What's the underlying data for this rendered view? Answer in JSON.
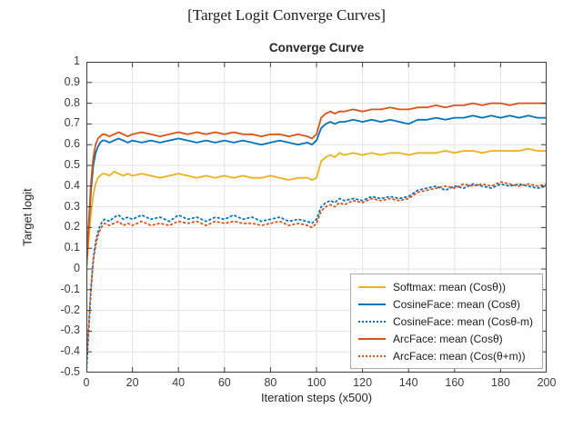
{
  "page": {
    "caption": "[Target Logit Converge Curves]"
  },
  "chart_data": {
    "type": "line",
    "title": "Converge Curve",
    "xlabel": "Iteration steps (x500)",
    "ylabel": "Target logit",
    "xlim": [
      0,
      200
    ],
    "ylim": [
      -0.5,
      1.0
    ],
    "grid": true,
    "legend_position": "bottom-right",
    "x_ticks": [
      0,
      20,
      40,
      60,
      80,
      100,
      120,
      140,
      160,
      180,
      200
    ],
    "y_ticks": [
      -0.5,
      -0.4,
      -0.3,
      -0.2,
      -0.1,
      0,
      0.1,
      0.2,
      0.3,
      0.4,
      0.5,
      0.6,
      0.7,
      0.8,
      0.9,
      1
    ],
    "y_tick_labels": [
      "-0.5",
      "-0.4",
      "-0.3",
      "-0.2",
      "-0.1",
      "0",
      "0.1",
      "0.2",
      "0.3",
      "0.4",
      "0.5",
      "0.6",
      "0.7",
      "0.8",
      "0.9",
      "1"
    ],
    "x": [
      0,
      1,
      2,
      3,
      4,
      5,
      6,
      7,
      8,
      10,
      12,
      14,
      16,
      18,
      20,
      24,
      28,
      32,
      36,
      40,
      44,
      48,
      52,
      56,
      60,
      64,
      68,
      72,
      76,
      80,
      84,
      88,
      92,
      96,
      98,
      100,
      102,
      104,
      106,
      108,
      110,
      112,
      116,
      120,
      124,
      128,
      132,
      136,
      140,
      144,
      148,
      152,
      156,
      160,
      164,
      168,
      172,
      176,
      180,
      184,
      188,
      192,
      196,
      200
    ],
    "series": [
      {
        "name": "Softmax: mean (Cosθ))",
        "color": "#EDB120",
        "style": "solid",
        "values": [
          0.0,
          0.14,
          0.27,
          0.36,
          0.41,
          0.44,
          0.45,
          0.46,
          0.46,
          0.45,
          0.47,
          0.46,
          0.45,
          0.46,
          0.45,
          0.46,
          0.45,
          0.44,
          0.45,
          0.46,
          0.45,
          0.44,
          0.45,
          0.44,
          0.45,
          0.44,
          0.45,
          0.44,
          0.44,
          0.45,
          0.44,
          0.43,
          0.44,
          0.44,
          0.43,
          0.44,
          0.52,
          0.54,
          0.55,
          0.54,
          0.56,
          0.55,
          0.56,
          0.55,
          0.56,
          0.55,
          0.56,
          0.56,
          0.55,
          0.56,
          0.56,
          0.56,
          0.57,
          0.56,
          0.57,
          0.57,
          0.56,
          0.57,
          0.57,
          0.57,
          0.57,
          0.58,
          0.57,
          0.57
        ]
      },
      {
        "name": "CosineFace: mean (Cosθ)",
        "color": "#0072BD",
        "style": "solid",
        "values": [
          0.0,
          0.2,
          0.38,
          0.5,
          0.56,
          0.59,
          0.61,
          0.62,
          0.62,
          0.61,
          0.62,
          0.63,
          0.62,
          0.61,
          0.62,
          0.61,
          0.62,
          0.61,
          0.62,
          0.63,
          0.62,
          0.61,
          0.62,
          0.61,
          0.62,
          0.61,
          0.62,
          0.61,
          0.6,
          0.61,
          0.62,
          0.61,
          0.6,
          0.61,
          0.6,
          0.62,
          0.68,
          0.7,
          0.71,
          0.7,
          0.71,
          0.71,
          0.72,
          0.71,
          0.72,
          0.71,
          0.72,
          0.71,
          0.7,
          0.72,
          0.72,
          0.73,
          0.72,
          0.73,
          0.73,
          0.74,
          0.73,
          0.74,
          0.73,
          0.74,
          0.73,
          0.74,
          0.73,
          0.73
        ]
      },
      {
        "name": "CosineFace: mean (Cosθ-m)",
        "color": "#0072BD",
        "style": "dotted",
        "values": [
          -0.5,
          -0.3,
          -0.1,
          0.05,
          0.13,
          0.18,
          0.21,
          0.23,
          0.24,
          0.23,
          0.25,
          0.26,
          0.24,
          0.25,
          0.24,
          0.26,
          0.24,
          0.25,
          0.23,
          0.26,
          0.24,
          0.25,
          0.23,
          0.25,
          0.24,
          0.26,
          0.24,
          0.25,
          0.23,
          0.24,
          0.25,
          0.23,
          0.24,
          0.23,
          0.22,
          0.24,
          0.3,
          0.32,
          0.33,
          0.32,
          0.34,
          0.33,
          0.34,
          0.33,
          0.35,
          0.34,
          0.35,
          0.34,
          0.35,
          0.38,
          0.39,
          0.4,
          0.38,
          0.4,
          0.39,
          0.41,
          0.4,
          0.39,
          0.41,
          0.4,
          0.41,
          0.4,
          0.39,
          0.4
        ]
      },
      {
        "name": "ArcFace: mean (Cosθ)",
        "color": "#D95319",
        "style": "solid",
        "values": [
          0.0,
          0.22,
          0.42,
          0.54,
          0.6,
          0.63,
          0.64,
          0.65,
          0.65,
          0.64,
          0.65,
          0.66,
          0.65,
          0.64,
          0.65,
          0.66,
          0.65,
          0.64,
          0.65,
          0.66,
          0.65,
          0.66,
          0.65,
          0.66,
          0.65,
          0.66,
          0.65,
          0.65,
          0.64,
          0.65,
          0.65,
          0.64,
          0.65,
          0.64,
          0.63,
          0.65,
          0.73,
          0.75,
          0.76,
          0.75,
          0.76,
          0.76,
          0.77,
          0.76,
          0.77,
          0.77,
          0.78,
          0.77,
          0.77,
          0.78,
          0.78,
          0.79,
          0.78,
          0.79,
          0.79,
          0.8,
          0.79,
          0.8,
          0.8,
          0.79,
          0.8,
          0.8,
          0.8,
          0.8
        ]
      },
      {
        "name": "ArcFace: mean (Cos(θ+m))",
        "color": "#D95319",
        "style": "dotted",
        "values": [
          -0.45,
          -0.27,
          -0.08,
          0.04,
          0.11,
          0.16,
          0.19,
          0.21,
          0.22,
          0.21,
          0.22,
          0.23,
          0.21,
          0.22,
          0.21,
          0.23,
          0.21,
          0.22,
          0.21,
          0.23,
          0.22,
          0.23,
          0.21,
          0.23,
          0.22,
          0.23,
          0.22,
          0.22,
          0.21,
          0.22,
          0.23,
          0.21,
          0.22,
          0.21,
          0.2,
          0.22,
          0.28,
          0.3,
          0.31,
          0.3,
          0.32,
          0.31,
          0.33,
          0.32,
          0.34,
          0.33,
          0.34,
          0.33,
          0.34,
          0.37,
          0.38,
          0.39,
          0.4,
          0.39,
          0.41,
          0.4,
          0.41,
          0.4,
          0.42,
          0.41,
          0.4,
          0.41,
          0.4,
          0.41
        ]
      }
    ]
  }
}
